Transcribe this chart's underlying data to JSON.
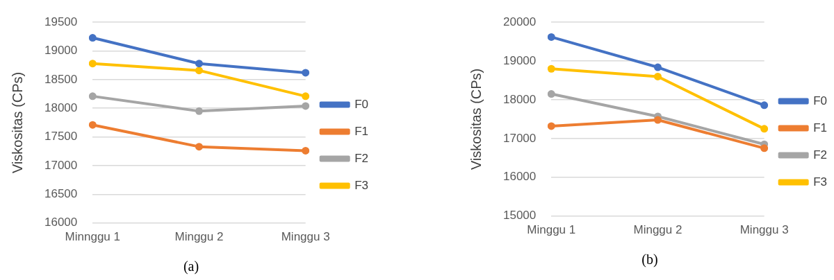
{
  "chart_data": [
    {
      "type": "line",
      "title": "(a)",
      "ylabel": "Viskositas (CPs)",
      "categories": [
        "Minnggu 1",
        "Minggu 2",
        "Minggu 3"
      ],
      "series": [
        {
          "name": "F0",
          "color": "#4472c4",
          "values": [
            19230,
            18780,
            18620
          ]
        },
        {
          "name": "F1",
          "color": "#ed7d31",
          "values": [
            17710,
            17330,
            17260
          ]
        },
        {
          "name": "F2",
          "color": "#a5a5a5",
          "values": [
            18210,
            17950,
            18040
          ]
        },
        {
          "name": "F3",
          "color": "#ffc000",
          "values": [
            18780,
            18660,
            18210
          ]
        }
      ],
      "ylim": [
        16000,
        19500
      ],
      "yticks": [
        16000,
        16500,
        17000,
        17500,
        18000,
        18500,
        19000,
        19500
      ],
      "grid": "y",
      "legend": "right",
      "marker": "circle",
      "line_style": "solid"
    },
    {
      "type": "line",
      "title": "(b)",
      "ylabel": "Viskositas (CPs)",
      "categories": [
        "Minggu 1",
        "Minggu 2",
        "Minggu 3"
      ],
      "series": [
        {
          "name": "F0",
          "color": "#4472c4",
          "values": [
            19620,
            18840,
            17860
          ]
        },
        {
          "name": "F1",
          "color": "#ed7d31",
          "values": [
            17320,
            17480,
            16750
          ]
        },
        {
          "name": "F2",
          "color": "#a5a5a5",
          "values": [
            18150,
            17570,
            16850
          ]
        },
        {
          "name": "F3",
          "color": "#ffc000",
          "values": [
            18800,
            18600,
            17250
          ]
        }
      ],
      "ylim": [
        15000,
        20000
      ],
      "yticks": [
        15000,
        16000,
        17000,
        18000,
        19000,
        20000
      ],
      "grid": "y",
      "legend": "right",
      "marker": "circle",
      "line_style": "solid"
    }
  ]
}
